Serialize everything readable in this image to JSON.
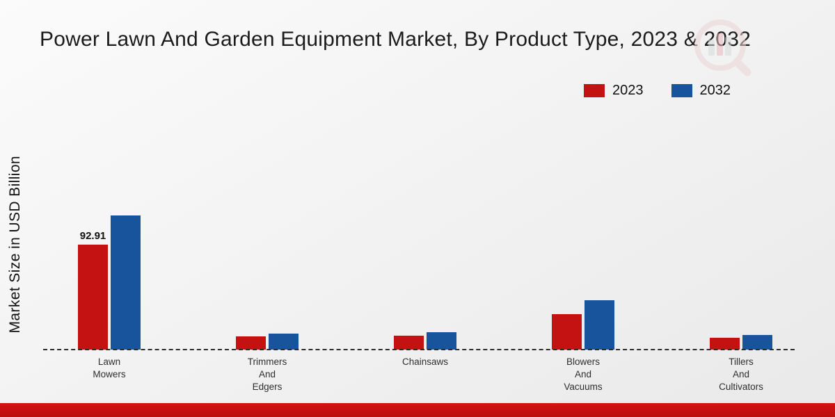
{
  "title": "Power Lawn And Garden Equipment Market, By Product Type, 2023 & 2032",
  "ylabel": "Market Size in USD Billion",
  "watermark_icon": "bar-chart-magnifier-logo",
  "footer": {
    "color": "#c51111"
  },
  "chart_data": {
    "type": "bar",
    "title": "Power Lawn And Garden Equipment Market, By Product Type, 2023 & 2032",
    "xlabel": "",
    "ylabel": "Market Size in USD Billion",
    "categories": [
      "Lawn Mowers",
      "Trimmers And Edgers",
      "Chainsaws",
      "Blowers And Vacuums",
      "Tillers And Cultivators"
    ],
    "category_label_lines": [
      [
        "Lawn",
        "Mowers"
      ],
      [
        "Trimmers",
        "And",
        "Edgers"
      ],
      [
        "Chainsaws"
      ],
      [
        "Blowers",
        "And",
        "Vacuums"
      ],
      [
        "Tillers",
        "And",
        "Cultivators"
      ]
    ],
    "series": [
      {
        "name": "2023",
        "color": "#c41111",
        "values": [
          92.91,
          11.5,
          12.4,
          31.6,
          10.5
        ],
        "data_labels": [
          "92.91",
          null,
          null,
          null,
          null
        ]
      },
      {
        "name": "2032",
        "color": "#17549c",
        "values": [
          118.9,
          14.2,
          15.5,
          44.1,
          13.0
        ],
        "data_labels": [
          null,
          null,
          null,
          null,
          null
        ]
      }
    ],
    "ylim": [
      0,
      190
    ],
    "grid": false,
    "legend_position": "top-right",
    "baseline_style": "dashed",
    "units": "USD Billion"
  }
}
